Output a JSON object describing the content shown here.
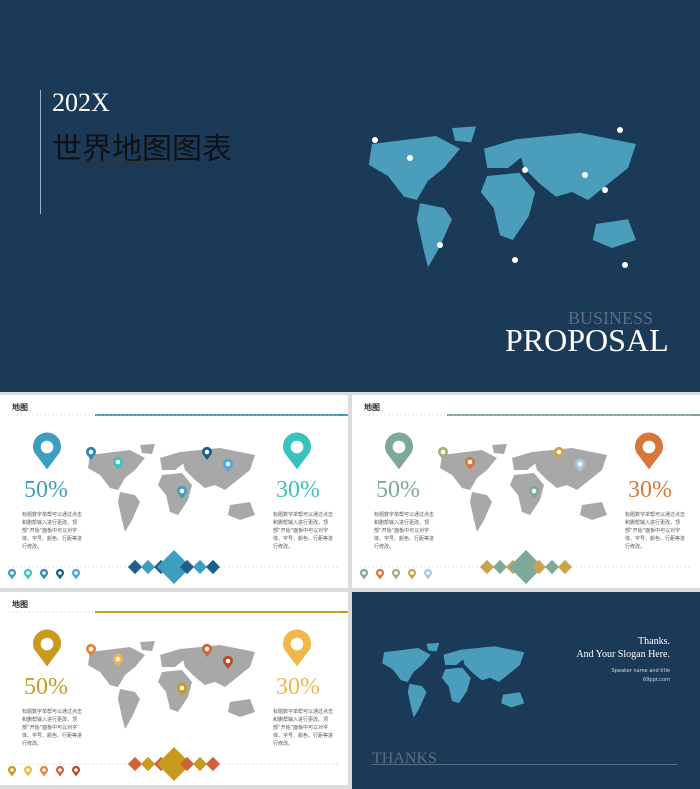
{
  "cover": {
    "year": "202X",
    "title": "世界地图图表",
    "subtitle": "高图视觉/矢量图标/简单易改",
    "business": "BUSINESS",
    "proposal": "PROPOSAL"
  },
  "slides": [
    {
      "label": "地图",
      "left_percent": "50%",
      "right_percent": "30%",
      "left_text": "标题数字单帮可以通过点击和删帮输入进行更改。顶部“开始”面板中可以对字体、字号、颜色、行距等进行修改。",
      "right_text": "标题数字单帮可以通过点击和删帮输入进行更改。顶部“开始”面板中可以对字体、字号、颜色、行距等进行修改。"
    },
    {
      "label": "地图",
      "left_percent": "50%",
      "right_percent": "30%",
      "left_text": "标题数字单帮可以通过点击和删帮输入进行更改。顶部“开始”面板中可以对字体、字号、颜色、行距等进行修改。",
      "right_text": "标题数字单帮可以通过点击和删帮输入进行更改。顶部“开始”面板中可以对字体、字号、颜色、行距等进行修改。"
    },
    {
      "label": "地图",
      "left_percent": "50%",
      "right_percent": "30%",
      "left_text": "标题数字单帮可以通过点击和删帮输入进行更改。顶部“开始”面板中可以对字体、字号、颜色、行距等进行修改。",
      "right_text": "标题数字单帮可以通过点击和删帮输入进行更改。顶部“开始”面板中可以对字体、字号、颜色、行距等进行修改。"
    }
  ],
  "closing": {
    "thanks": "Thanks.",
    "slogan": "And Your Slogan Here.",
    "speaker": "Speaker name and title",
    "site": "69ppt.com",
    "footer": "THANKS"
  }
}
